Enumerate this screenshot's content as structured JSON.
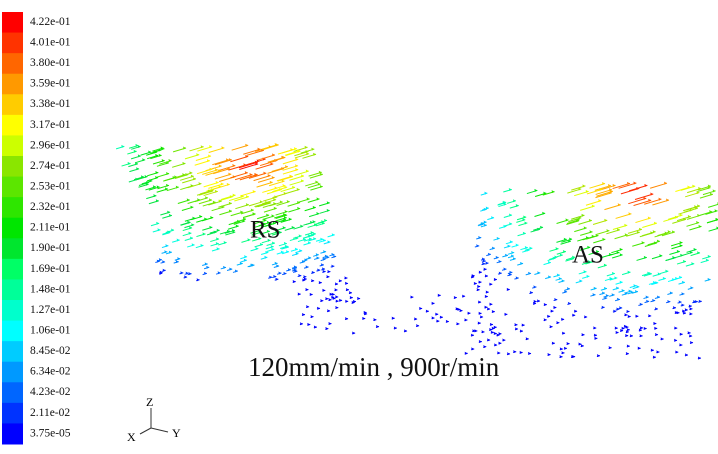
{
  "legend": {
    "labels": [
      "4.22e-01",
      "4.01e-01",
      "3.80e-01",
      "3.59e-01",
      "3.38e-01",
      "3.17e-01",
      "2.96e-01",
      "2.74e-01",
      "2.53e-01",
      "2.32e-01",
      "2.11e-01",
      "1.90e-01",
      "1.69e-01",
      "1.48e-01",
      "1.27e-01",
      "1.06e-01",
      "8.45e-02",
      "6.34e-02",
      "4.23e-02",
      "2.11e-02",
      "3.75e-05"
    ]
  },
  "regions": [
    {
      "label": "RS"
    },
    {
      "label": "AS"
    }
  ],
  "caption": "120mm/min , 900r/min",
  "triad": {
    "z": "Z",
    "x": "X",
    "y": "Y"
  }
}
